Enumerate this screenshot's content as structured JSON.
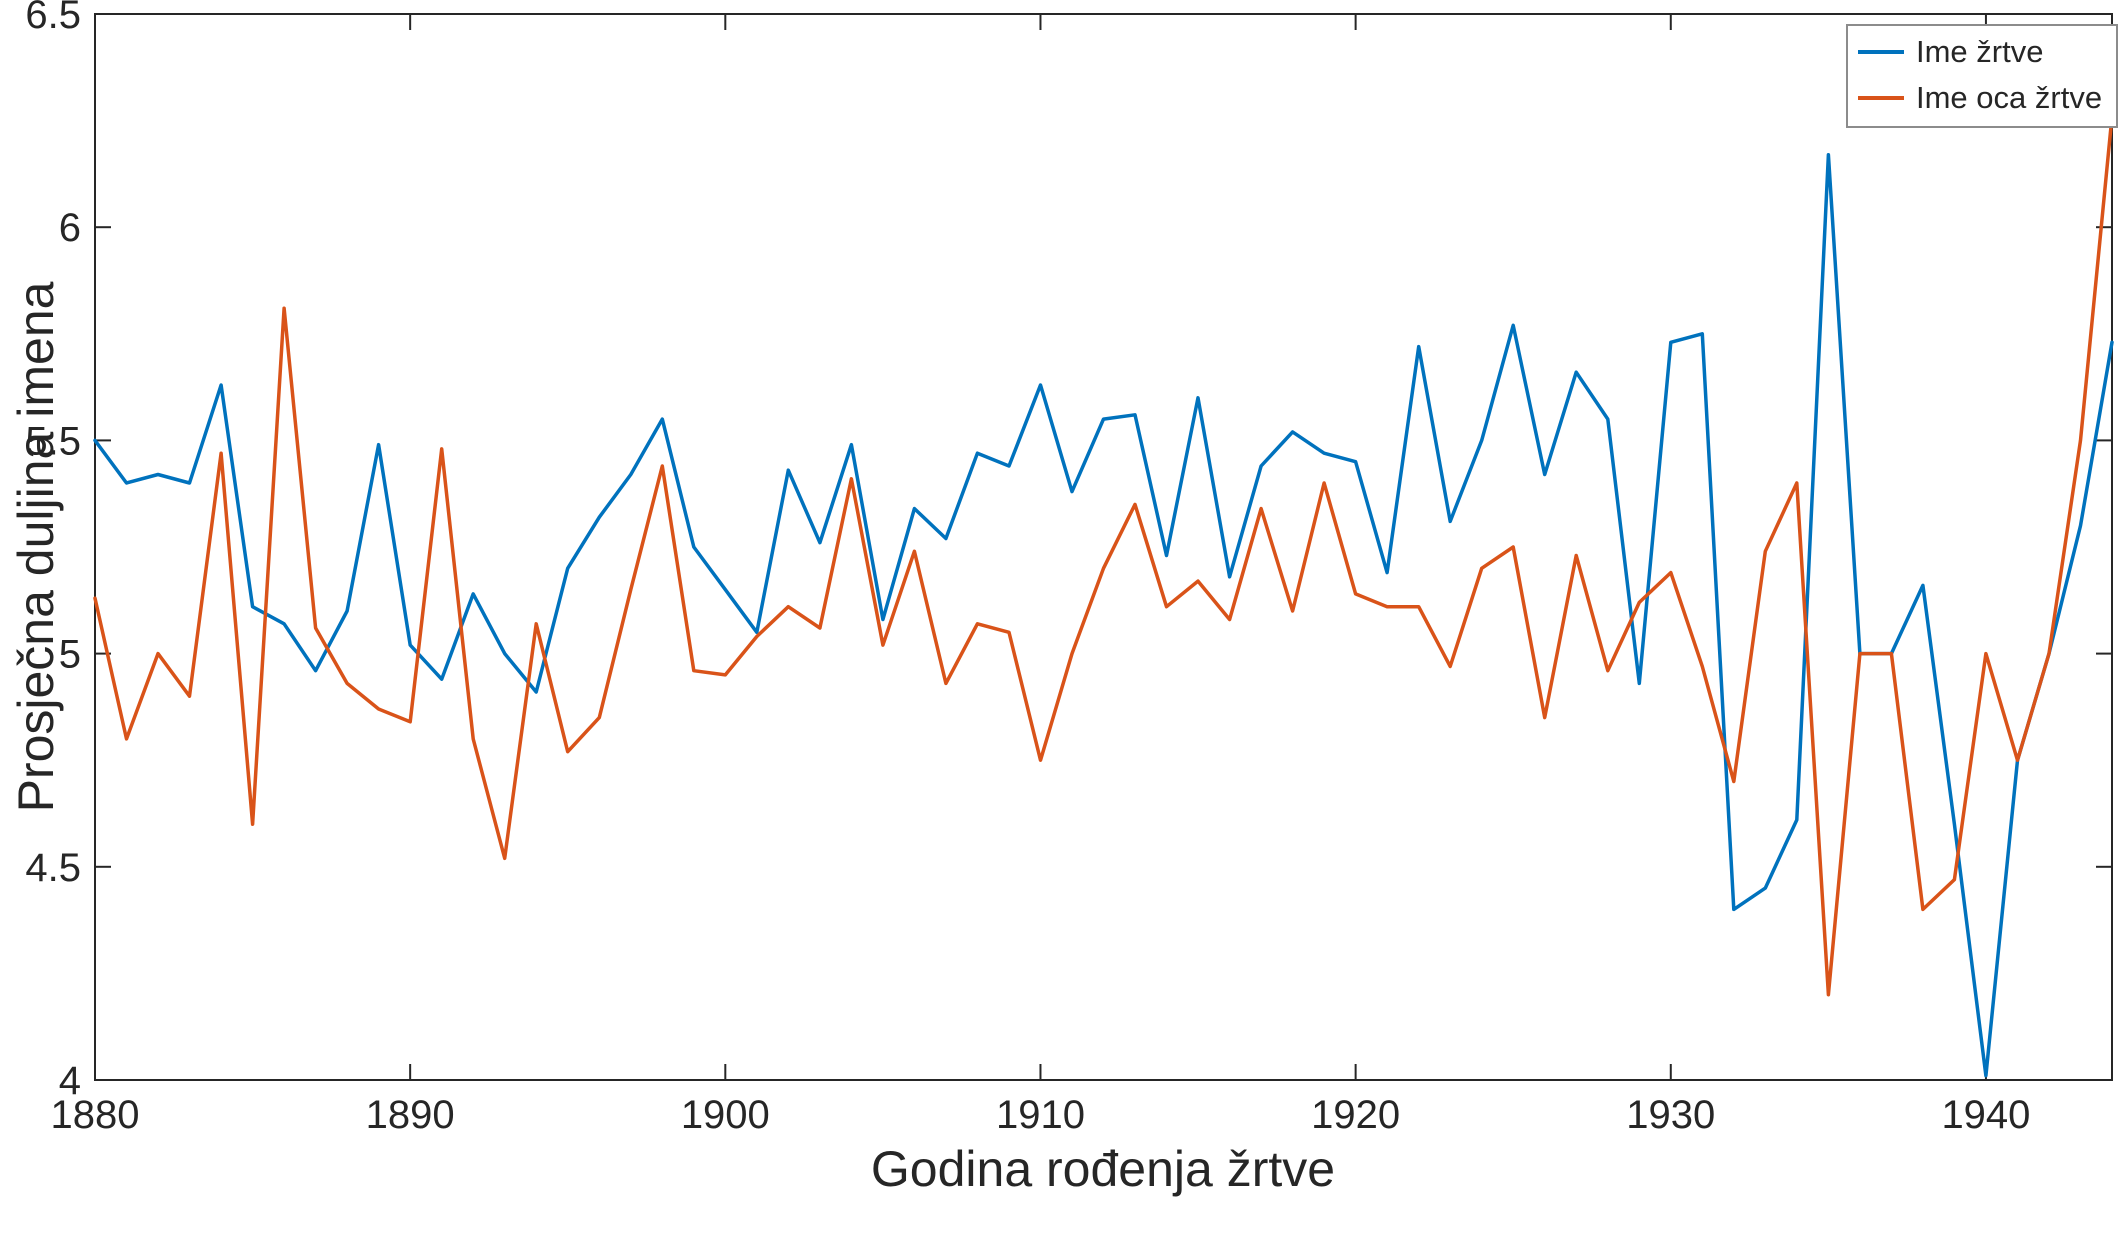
{
  "chart_data": {
    "type": "line",
    "title": "",
    "xlabel": "Godina rođenja žrtve",
    "ylabel": "Prosječna duljina imena",
    "xlim": [
      1880,
      1944
    ],
    "ylim": [
      4,
      6.5
    ],
    "xticks": [
      1880,
      1890,
      1900,
      1910,
      1920,
      1930,
      1940
    ],
    "yticks": [
      4,
      4.5,
      5,
      5.5,
      6,
      6.5
    ],
    "grid": false,
    "legend_position": "top-right",
    "axis_color": "#262626",
    "x": [
      1880,
      1881,
      1882,
      1883,
      1884,
      1885,
      1886,
      1887,
      1888,
      1889,
      1890,
      1891,
      1892,
      1893,
      1894,
      1895,
      1896,
      1897,
      1898,
      1899,
      1900,
      1901,
      1902,
      1903,
      1904,
      1905,
      1906,
      1907,
      1908,
      1909,
      1910,
      1911,
      1912,
      1913,
      1914,
      1915,
      1916,
      1917,
      1918,
      1919,
      1920,
      1921,
      1922,
      1923,
      1924,
      1925,
      1926,
      1927,
      1928,
      1929,
      1930,
      1931,
      1932,
      1933,
      1934,
      1935,
      1936,
      1937,
      1938,
      1939,
      1940,
      1941,
      1942,
      1943,
      1944
    ],
    "series": [
      {
        "name": "Ime žrtve",
        "color": "#0072BD",
        "values": [
          5.5,
          5.4,
          5.42,
          5.4,
          5.63,
          5.11,
          5.07,
          4.96,
          5.1,
          5.49,
          5.02,
          4.94,
          5.14,
          5.0,
          4.91,
          5.2,
          5.32,
          5.42,
          5.55,
          5.25,
          5.15,
          5.05,
          5.43,
          5.26,
          5.49,
          5.08,
          5.34,
          5.27,
          5.47,
          5.44,
          5.63,
          5.38,
          5.55,
          5.56,
          5.23,
          5.6,
          5.18,
          5.44,
          5.52,
          5.47,
          5.45,
          5.19,
          5.72,
          5.31,
          5.5,
          5.77,
          5.42,
          5.66,
          5.55,
          4.93,
          5.73,
          5.75,
          4.4,
          4.45,
          4.61,
          6.17,
          5.0,
          5.0,
          5.16,
          4.6,
          4.01,
          4.75,
          5.0,
          5.3,
          5.73
        ]
      },
      {
        "name": "Ime oca žrtve",
        "color": "#D95319",
        "values": [
          5.13,
          4.8,
          5.0,
          4.9,
          5.47,
          4.6,
          5.81,
          5.06,
          4.93,
          4.87,
          4.84,
          5.48,
          4.8,
          4.52,
          5.07,
          4.77,
          4.85,
          5.15,
          5.44,
          4.96,
          4.95,
          5.04,
          5.11,
          5.06,
          5.41,
          5.02,
          5.24,
          4.93,
          5.07,
          5.05,
          4.75,
          5.0,
          5.2,
          5.35,
          5.11,
          5.17,
          5.08,
          5.34,
          5.1,
          5.4,
          5.14,
          5.11,
          5.11,
          4.97,
          5.2,
          5.25,
          4.85,
          5.23,
          4.96,
          5.12,
          5.19,
          4.97,
          4.7,
          5.24,
          5.4,
          4.2,
          5.0,
          5.0,
          4.4,
          4.47,
          5.0,
          4.75,
          5.0,
          5.5,
          6.26
        ]
      }
    ]
  }
}
